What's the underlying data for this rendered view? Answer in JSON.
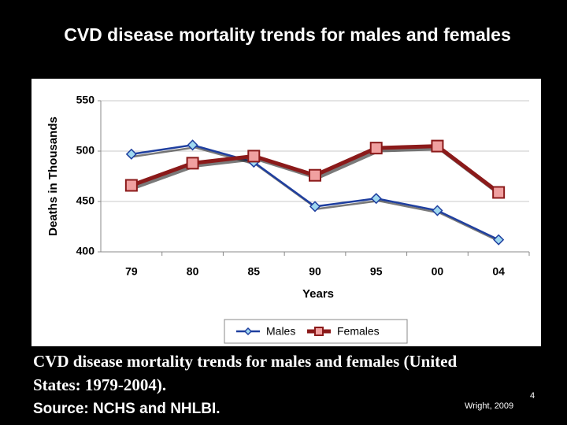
{
  "chart_data": {
    "type": "line",
    "title": "CVD disease mortality trends for males and females",
    "x_label": "Years",
    "y_label": "Deaths in Thousands",
    "categories": [
      "79",
      "80",
      "85",
      "90",
      "95",
      "00",
      "04"
    ],
    "series": [
      {
        "name": "Males",
        "color": "#1f3f9f",
        "marker": "diamond",
        "values": [
          497,
          506,
          489,
          445,
          453,
          441,
          412
        ]
      },
      {
        "name": "Females",
        "color": "#8b1a1a",
        "marker": "square",
        "values": [
          466,
          488,
          495,
          476,
          503,
          505,
          459
        ]
      }
    ],
    "ylim": [
      400,
      550
    ],
    "yticks": [
      400,
      450,
      500,
      550
    ],
    "grid": true,
    "legend": "bottom"
  },
  "caption": "CVD disease mortality trends for males and females (United States: 1979-2004).",
  "source": "Source: NCHS and NHLBI.",
  "attribution": "Wright, 2009",
  "page_number": "4"
}
